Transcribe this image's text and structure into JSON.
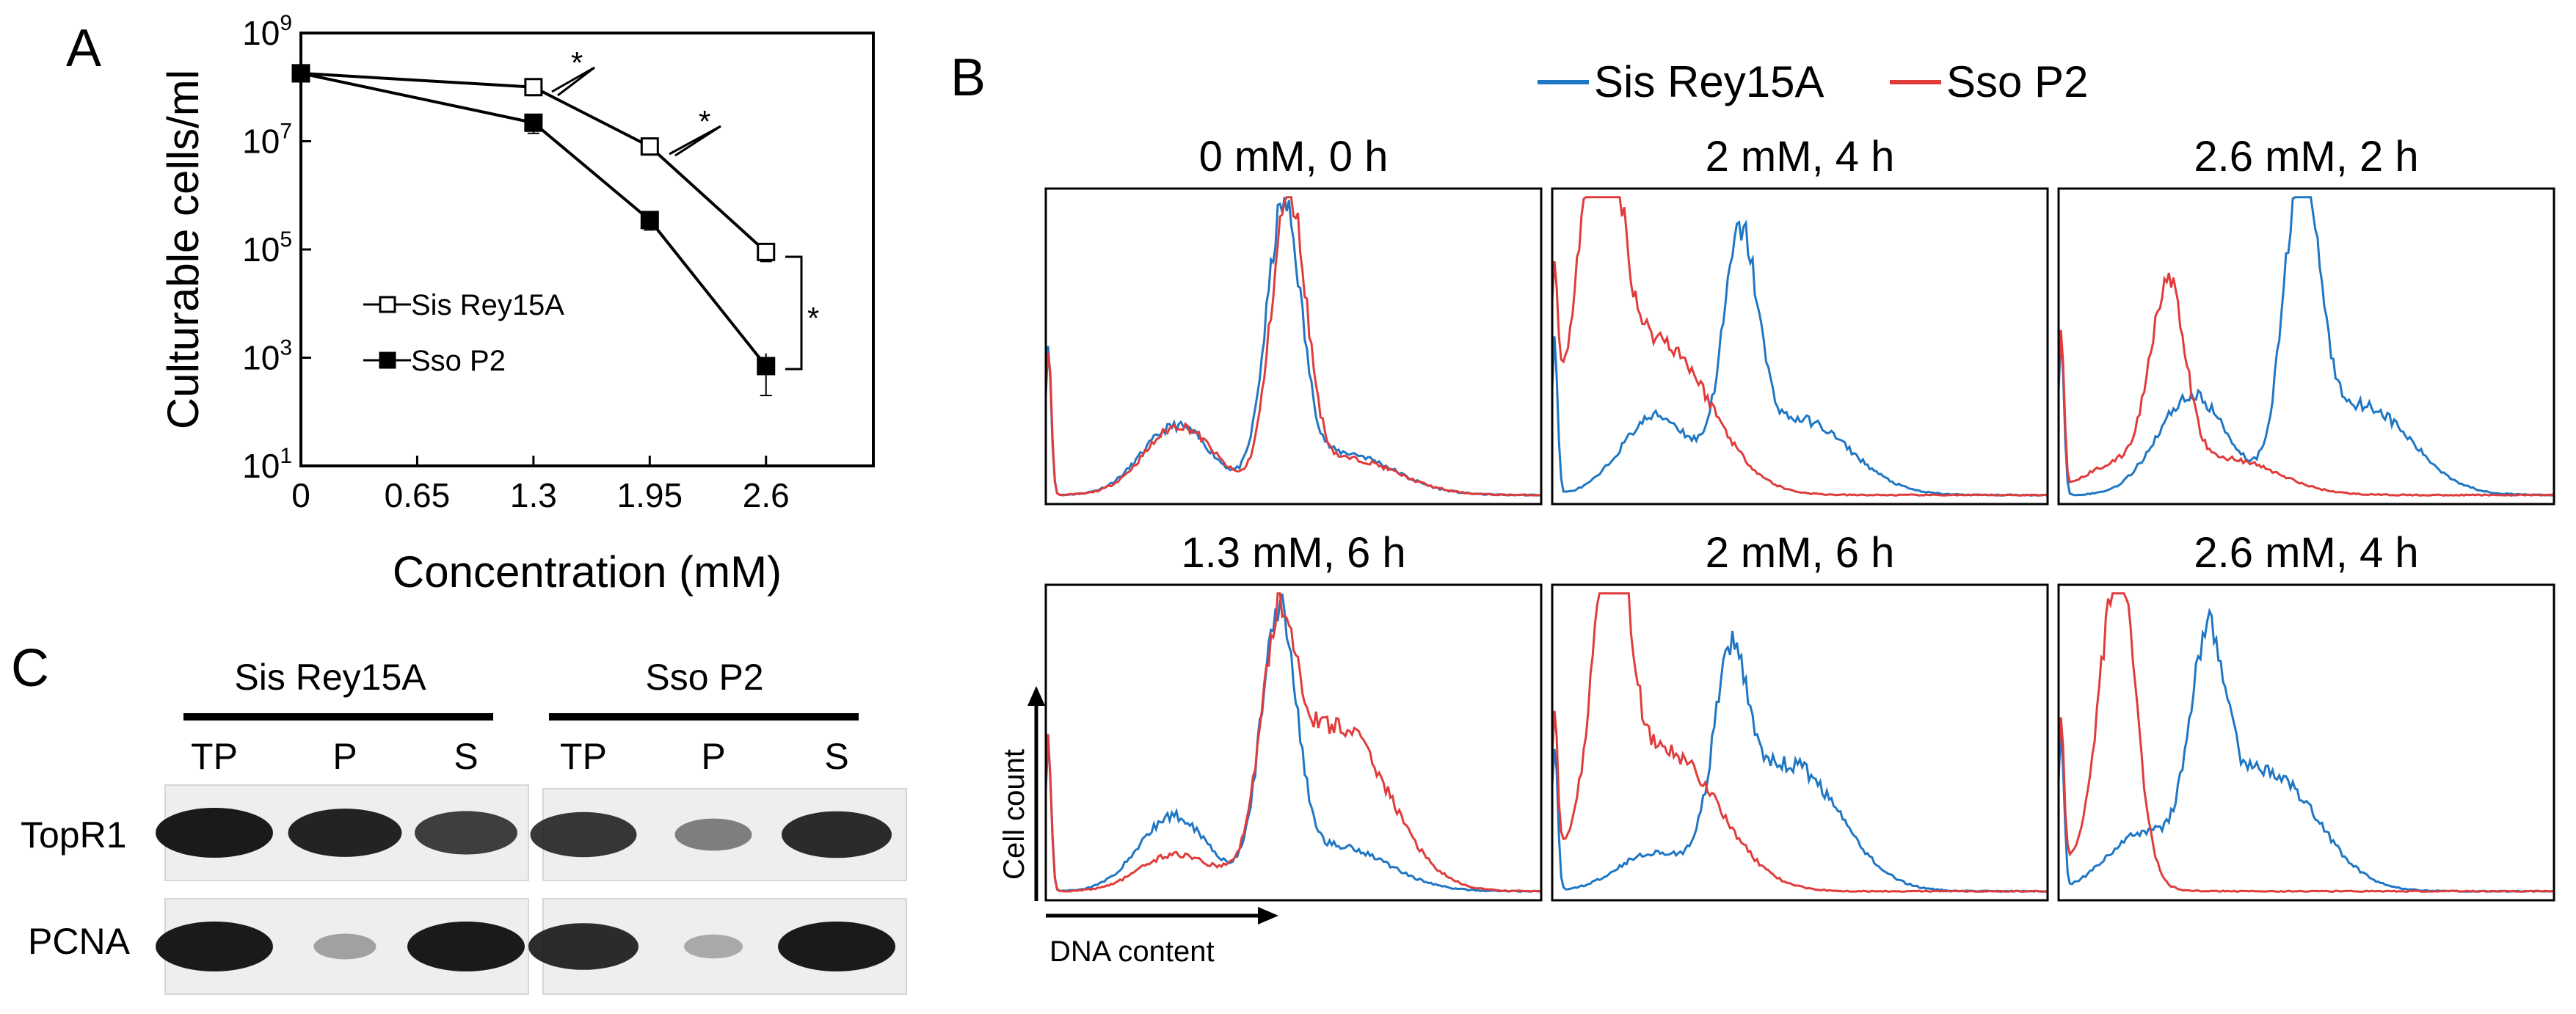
{
  "panels": {
    "a": "A",
    "b": "B",
    "c": "C"
  },
  "colors": {
    "sis": "#1f77c4",
    "sso": "#e03c3c"
  },
  "chart_data": [
    {
      "type": "line",
      "panel": "A",
      "xlabel": "Concentration (mM)",
      "ylabel": "Culturable cells/ml",
      "x_ticks": [
        "0",
        "0.65",
        "1.3",
        "1.95",
        "2.6"
      ],
      "xlim": [
        0,
        3.2
      ],
      "y_scale": "log",
      "ylim": [
        10,
        1000000000
      ],
      "y_tick_base": "10",
      "y_tick_exponents": [
        "1",
        "3",
        "5",
        "7",
        "9"
      ],
      "legend_position": "left-middle",
      "series": [
        {
          "name": "Sis Rey15A",
          "marker": "open-square",
          "x": [
            0,
            1.3,
            1.95,
            2.6
          ],
          "y": [
            180000000,
            100000000,
            8000000,
            90000
          ],
          "err": [
            0,
            30000000,
            2000000,
            30000
          ]
        },
        {
          "name": "Sso P2",
          "marker": "filled-square",
          "x": [
            0,
            1.3,
            1.95,
            2.6
          ],
          "y": [
            180000000,
            22000000,
            350000,
            700
          ],
          "err": [
            0,
            8000000,
            120000,
            500
          ]
        }
      ],
      "significance": [
        "*",
        "*",
        "*"
      ]
    },
    {
      "type": "line",
      "panel": "B",
      "description": "flow cytometry DNA content histograms",
      "legend": [
        "Sis Rey15A",
        "Sso P2"
      ],
      "xlabel": "DNA content",
      "ylabel": "Cell count",
      "subplots": [
        {
          "title": "0 mM, 0 h",
          "sis": {
            "peak": 0.48,
            "height": 0.9,
            "side": [
              0.23,
              0.14
            ]
          },
          "sso": {
            "peak": 0.49,
            "height": 0.95,
            "side": [
              0.23,
              0.12
            ]
          }
        },
        {
          "title": "2 mM, 4 h",
          "sis": {
            "peak": 0.38,
            "height": 0.75,
            "side": [
              0.26,
              0.25
            ]
          },
          "sso": {
            "peak": 0.1,
            "height": 0.95,
            "side": [
              0.3,
              0.5
            ]
          }
        },
        {
          "title": "2.6 mM, 2 h",
          "sis": {
            "peak": 0.49,
            "height": 0.98,
            "side": [
              0.33,
              0.3
            ]
          },
          "sso": {
            "peak": 0.22,
            "height": 0.62,
            "side": [
              0.1,
              0.12
            ]
          }
        },
        {
          "title": "1.3 mM, 6 h",
          "sis": {
            "peak": 0.47,
            "height": 0.88,
            "side": [
              0.25,
              0.15
            ]
          },
          "sso": {
            "peak": 0.47,
            "height": 0.68,
            "side": [
              0.12,
              0.55
            ]
          }
        },
        {
          "title": "2 mM, 6 h",
          "sis": {
            "peak": 0.36,
            "height": 0.6,
            "side": [
              0.12,
              0.42
            ]
          },
          "sso": {
            "peak": 0.12,
            "height": 0.95,
            "side": [
              0.12,
              0.45
            ]
          }
        },
        {
          "title": "2.6 mM, 4 h",
          "sis": {
            "peak": 0.3,
            "height": 0.66,
            "side": [
              0.18,
              0.4
            ]
          },
          "sso": {
            "peak": 0.12,
            "height": 1.0,
            "side": [
              0.12,
              0.0
            ]
          }
        }
      ]
    }
  ],
  "panel_c": {
    "groups": [
      "Sis Rey15A",
      "Sso P2"
    ],
    "lanes": [
      "TP",
      "P",
      "S"
    ],
    "rows": [
      "TopR1",
      "PCNA"
    ],
    "band_intensity": {
      "sis_topr1": [
        1.0,
        0.95,
        0.8
      ],
      "sis_pcna": [
        1.0,
        0.25,
        1.0
      ],
      "sso_topr1": [
        0.85,
        0.45,
        0.9
      ],
      "sso_pcna": [
        0.9,
        0.2,
        1.0
      ]
    }
  }
}
